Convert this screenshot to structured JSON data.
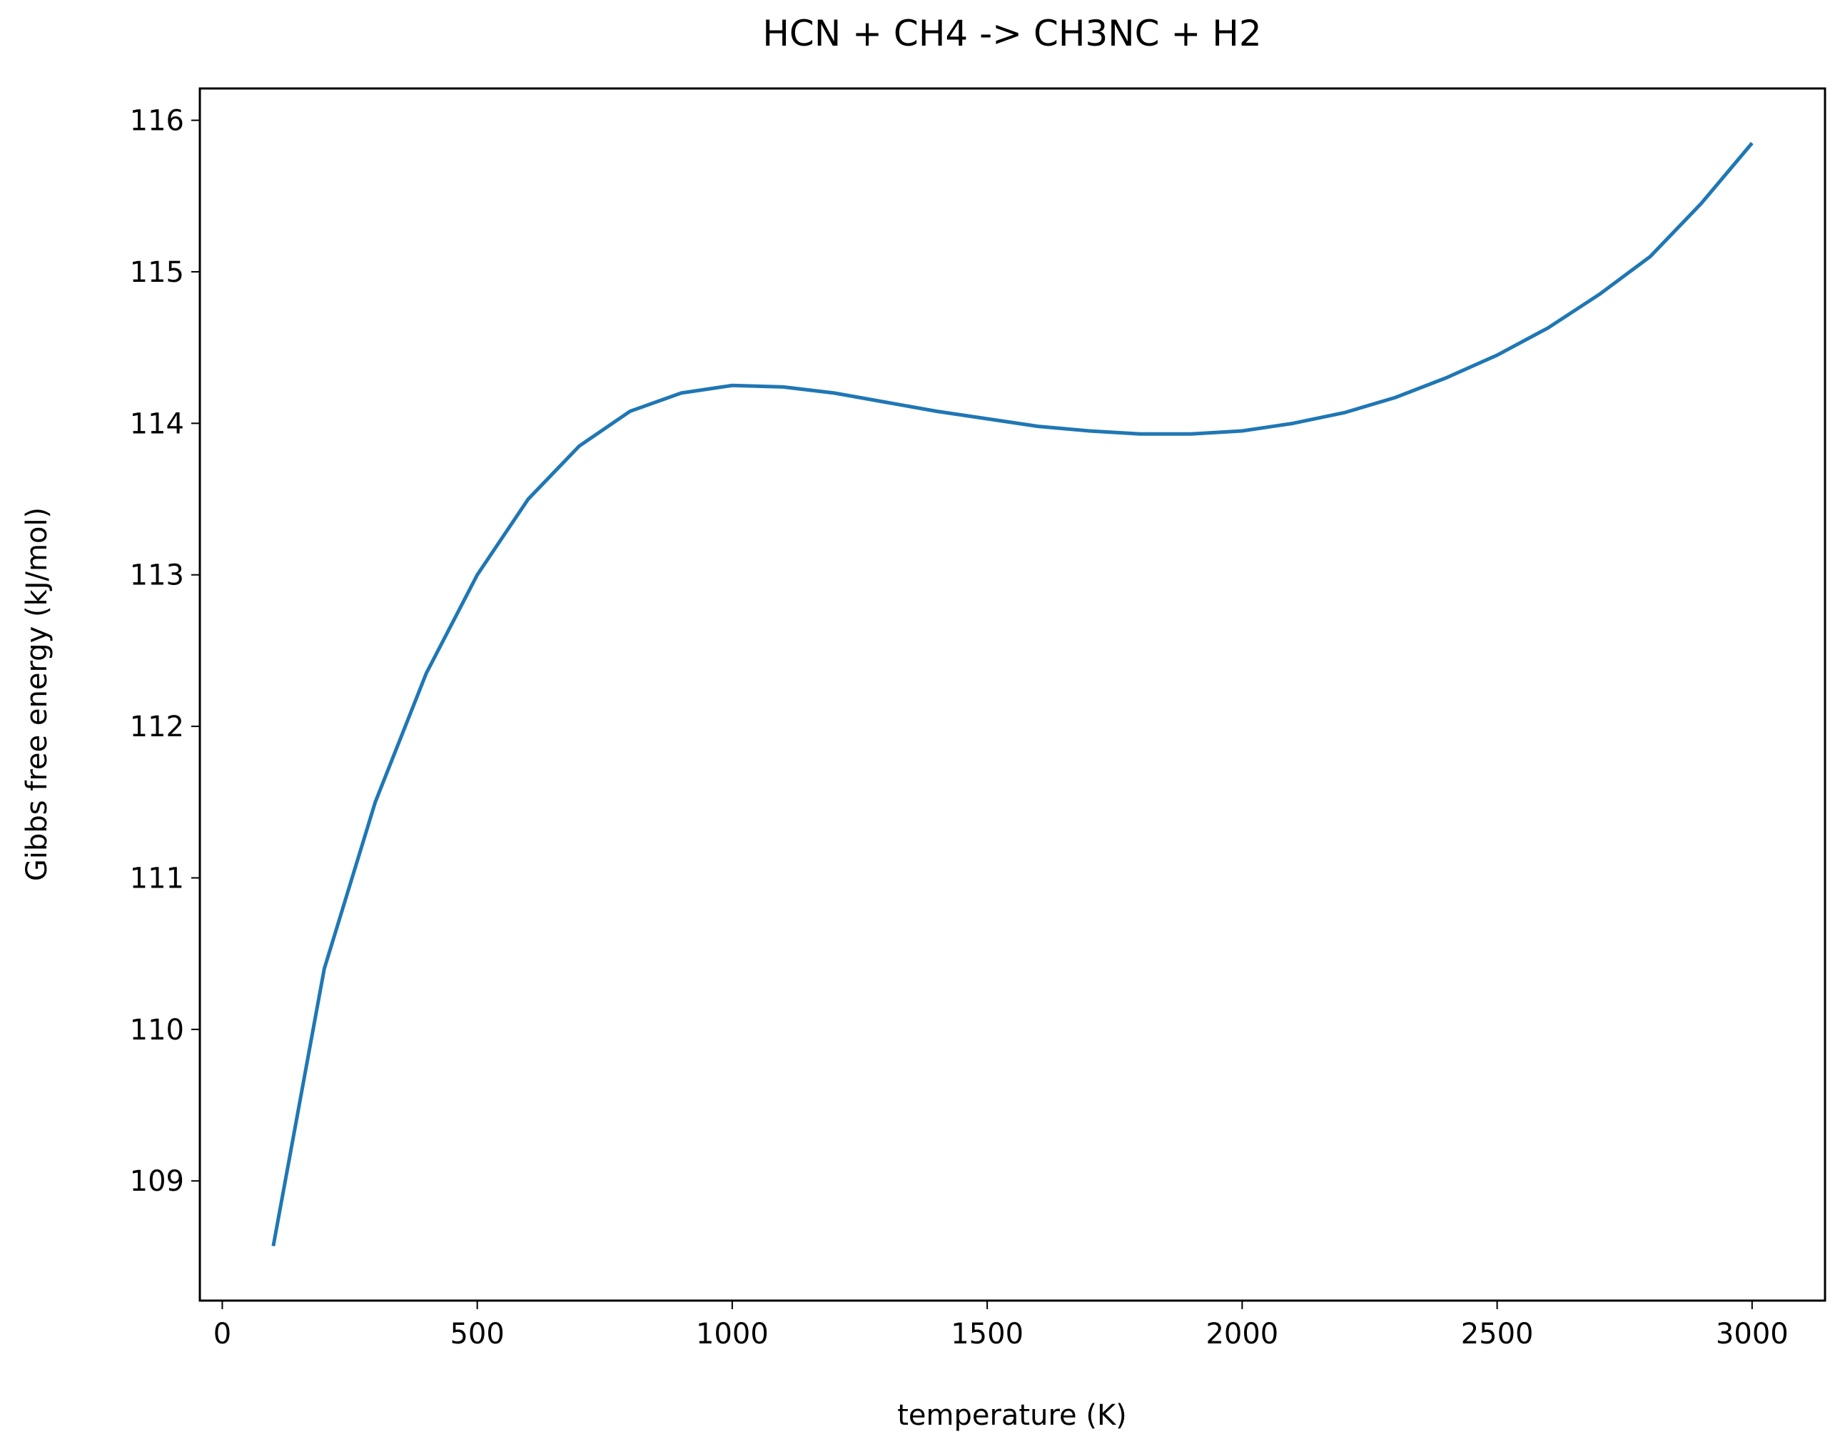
{
  "chart_data": {
    "type": "line",
    "title": "HCN + CH4 -> CH3NC + H2",
    "xlabel": "temperature (K)",
    "ylabel": "Gibbs free energy (kJ/mol)",
    "x": [
      100,
      200,
      300,
      400,
      500,
      600,
      700,
      800,
      900,
      1000,
      1100,
      1200,
      1300,
      1400,
      1500,
      1600,
      1700,
      1800,
      1900,
      2000,
      2100,
      2200,
      2300,
      2400,
      2500,
      2600,
      2700,
      2800,
      2900,
      3000
    ],
    "series": [
      {
        "color": "#1f77b4",
        "values": [
          108.57,
          110.4,
          111.5,
          112.35,
          113.0,
          113.5,
          113.85,
          114.08,
          114.2,
          114.25,
          114.24,
          114.2,
          114.14,
          114.08,
          114.03,
          113.98,
          113.95,
          113.93,
          113.93,
          113.95,
          114.0,
          114.07,
          114.17,
          114.3,
          114.45,
          114.63,
          114.85,
          115.1,
          115.45,
          115.85
        ]
      }
    ],
    "xlim": [
      -44,
      3143
    ],
    "ylim": [
      108.21,
      116.21
    ],
    "xticks": [
      0,
      500,
      1000,
      1500,
      2000,
      2500,
      3000
    ],
    "yticks": [
      109,
      110,
      111,
      112,
      113,
      114,
      115,
      116
    ]
  }
}
